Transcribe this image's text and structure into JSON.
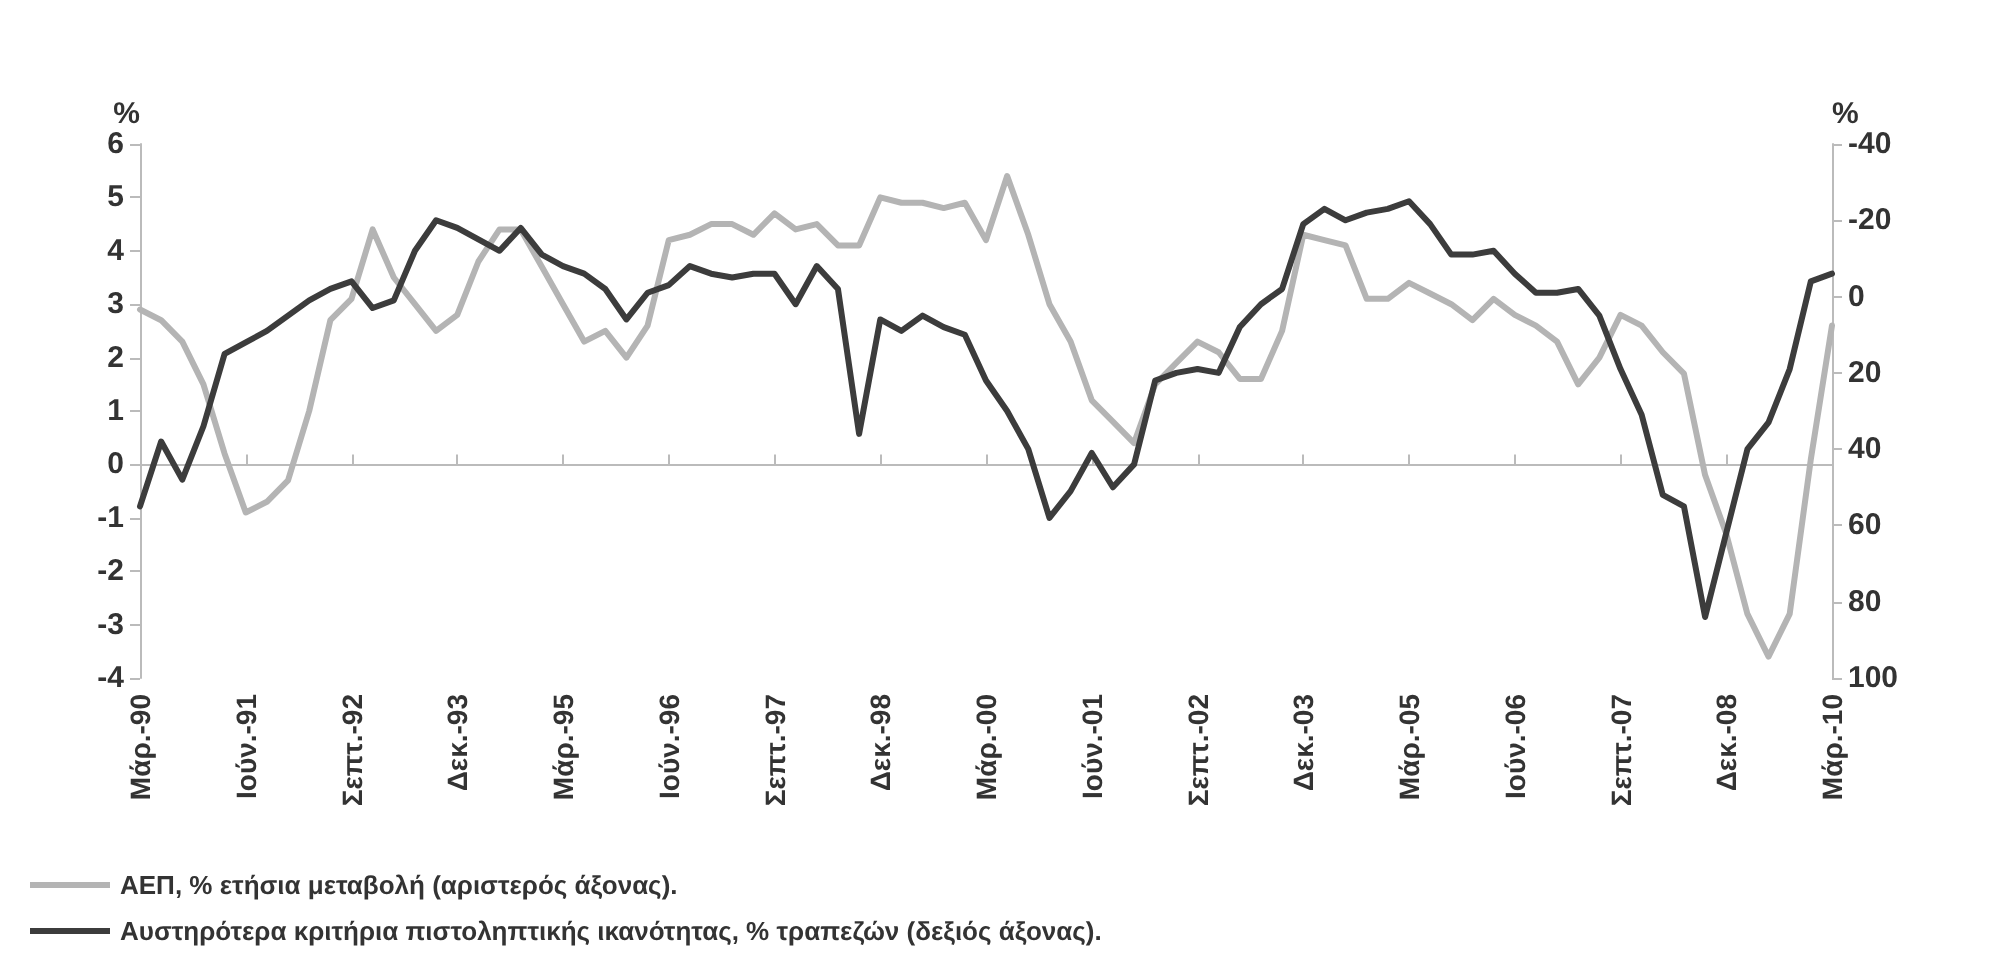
{
  "chart_data": {
    "type": "line",
    "ylabel": "%",
    "y2label": "%",
    "categories": [
      "Μάρ.-90",
      null,
      null,
      null,
      null,
      "Ιούν.-91",
      null,
      null,
      null,
      null,
      "Σεπτ.-92",
      null,
      null,
      null,
      null,
      "Δεκ.-93",
      null,
      null,
      null,
      null,
      "Μάρ.-95",
      null,
      null,
      null,
      null,
      "Ιούν.-96",
      null,
      null,
      null,
      null,
      "Σεπτ.-97",
      null,
      null,
      null,
      null,
      "Δεκ.-98",
      null,
      null,
      null,
      null,
      "Μάρ.-00",
      null,
      null,
      null,
      null,
      "Ιούν.-01",
      null,
      null,
      null,
      null,
      "Σεπτ.-02",
      null,
      null,
      null,
      null,
      "Δεκ.-03",
      null,
      null,
      null,
      null,
      "Μάρ.-05",
      null,
      null,
      null,
      null,
      "Ιούν.-06",
      null,
      null,
      null,
      null,
      "Σεπτ.-07",
      null,
      null,
      null,
      null,
      "Δεκ.-08",
      null,
      null,
      null,
      null,
      "Μάρ.-10"
    ],
    "series": [
      {
        "name": "ΑΕΠ, % ετήσια μεταβολή (αριστερός άξονας).",
        "color": "#b4b4b4",
        "values": [
          2.9,
          2.7,
          2.3,
          1.5,
          0.2,
          -0.9,
          -0.7,
          -0.3,
          1.0,
          2.7,
          3.1,
          4.4,
          3.5,
          3.0,
          2.5,
          2.8,
          3.8,
          4.4,
          4.4,
          3.7,
          3.0,
          2.3,
          2.5,
          2.0,
          2.6,
          4.2,
          4.3,
          4.5,
          4.5,
          4.3,
          4.7,
          4.4,
          4.5,
          4.1,
          4.1,
          5.0,
          4.9,
          4.9,
          4.8,
          4.9,
          4.2,
          5.4,
          4.3,
          3.0,
          2.3,
          1.2,
          0.8,
          0.4,
          1.5,
          1.9,
          2.3,
          2.1,
          1.6,
          1.6,
          2.5,
          4.3,
          4.2,
          4.1,
          3.1,
          3.1,
          3.4,
          3.2,
          3.0,
          2.7,
          3.1,
          2.8,
          2.6,
          2.3,
          1.5,
          2.0,
          2.8,
          2.6,
          2.1,
          1.7,
          -0.2,
          -1.3,
          -2.8,
          -3.6,
          -2.8,
          0.1,
          2.6
        ]
      },
      {
        "name": "Αυστηρότερα κριτήρια πιστοληπτικής ικανότητας, % τραπεζών (δεξιός άξονας).",
        "color": "#3c3c3c",
        "axis": "y2",
        "values": [
          55,
          38,
          48,
          34,
          15,
          12,
          9,
          5,
          1,
          -2,
          -4,
          3,
          1,
          -12,
          -20,
          -18,
          -15,
          -12,
          -18,
          -11,
          -8,
          -6,
          -2,
          6,
          -1,
          -3,
          -8,
          -6,
          -5,
          -6,
          -6,
          2,
          -8,
          -2,
          36,
          6,
          9,
          5,
          8,
          10,
          22,
          30,
          40,
          58,
          51,
          41,
          50,
          44,
          22,
          20,
          19,
          20,
          8,
          2,
          -2,
          -19,
          -23,
          -20,
          -22,
          -23,
          -25,
          -19,
          -11,
          -11,
          -12,
          -6,
          -1,
          -1,
          -2,
          5,
          19,
          31,
          52,
          55,
          84,
          62,
          40,
          33,
          19,
          -4,
          -6
        ]
      }
    ],
    "ylim": [
      -4,
      6
    ],
    "yticks": [
      -4,
      -3,
      -2,
      -1,
      0,
      1,
      2,
      3,
      4,
      5,
      6
    ],
    "y2lim": [
      100,
      -40
    ],
    "y2ticks": [
      -40,
      -20,
      0,
      20,
      40,
      60,
      80,
      100
    ],
    "legend": "bottom left",
    "marker": "none",
    "line_style": "solid"
  }
}
